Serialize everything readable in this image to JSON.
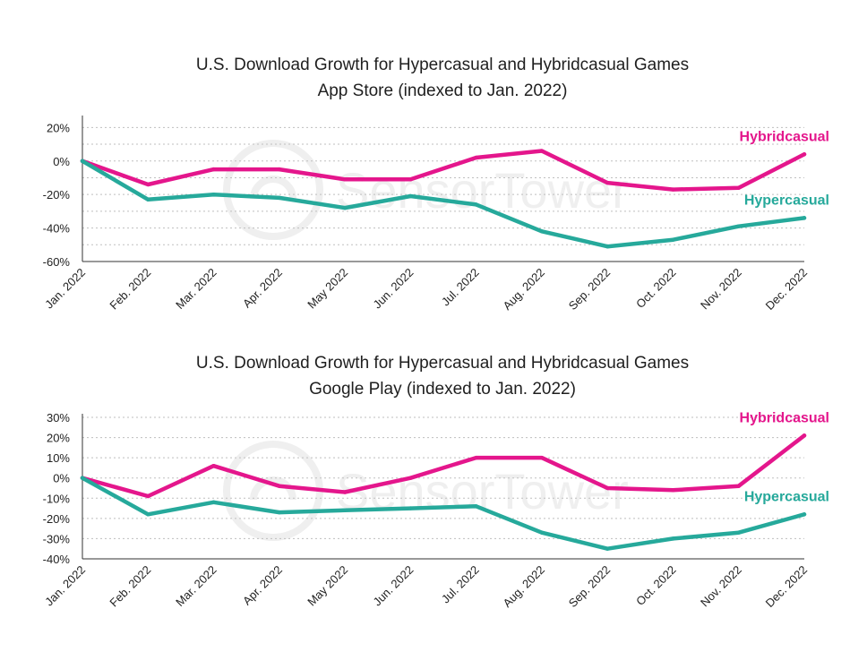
{
  "chart_data": [
    {
      "type": "line",
      "title": "U.S. Download Growth for Hypercasual and Hybridcasual Games",
      "subtitle": "App Store (indexed to Jan. 2022)",
      "watermark": "SensorTower",
      "categories": [
        "Jan. 2022",
        "Feb. 2022",
        "Mar. 2022",
        "Apr. 2022",
        "May 2022",
        "Jun. 2022",
        "Jul. 2022",
        "Aug. 2022",
        "Sep. 2022",
        "Oct. 2022",
        "Nov. 2022",
        "Dec. 2022"
      ],
      "ylim": [
        -60,
        25
      ],
      "yticks": [
        20,
        0,
        -20,
        -40,
        -60
      ],
      "ytick_labels": [
        "20%",
        "0%",
        "-20%",
        "-40%",
        "-60%"
      ],
      "grid": true,
      "series": [
        {
          "name": "Hybridcasual",
          "color": "#e4168c",
          "values": [
            0,
            -14,
            -5,
            -5,
            -11,
            -11,
            2,
            6,
            -13,
            -17,
            -16,
            4
          ]
        },
        {
          "name": "Hypercasual",
          "color": "#26a99b",
          "values": [
            0,
            -23,
            -20,
            -22,
            -28,
            -21,
            -26,
            -42,
            -51,
            -47,
            -39,
            -34
          ]
        }
      ]
    },
    {
      "type": "line",
      "title": "U.S. Download Growth for Hypercasual and Hybridcasual Games",
      "subtitle": "Google Play (indexed to Jan. 2022)",
      "watermark": "SensorTower",
      "categories": [
        "Jan. 2022",
        "Feb. 2022",
        "Mar. 2022",
        "Apr. 2022",
        "May 2022",
        "Jun. 2022",
        "Jul. 2022",
        "Aug. 2022",
        "Sep. 2022",
        "Oct. 2022",
        "Nov. 2022",
        "Dec. 2022"
      ],
      "ylim": [
        -40,
        30
      ],
      "yticks": [
        30,
        20,
        10,
        0,
        -10,
        -20,
        -30,
        -40
      ],
      "ytick_labels": [
        "30%",
        "20%",
        "10%",
        "0%",
        "-10%",
        "-20%",
        "-30%",
        "-40%"
      ],
      "grid": true,
      "series": [
        {
          "name": "Hybridcasual",
          "color": "#e4168c",
          "values": [
            0,
            -9,
            6,
            -4,
            -7,
            0,
            10,
            10,
            -5,
            -6,
            -4,
            21
          ]
        },
        {
          "name": "Hypercasual",
          "color": "#26a99b",
          "values": [
            0,
            -18,
            -12,
            -17,
            -16,
            -15,
            -14,
            -27,
            -35,
            -30,
            -27,
            -18
          ]
        }
      ]
    }
  ]
}
